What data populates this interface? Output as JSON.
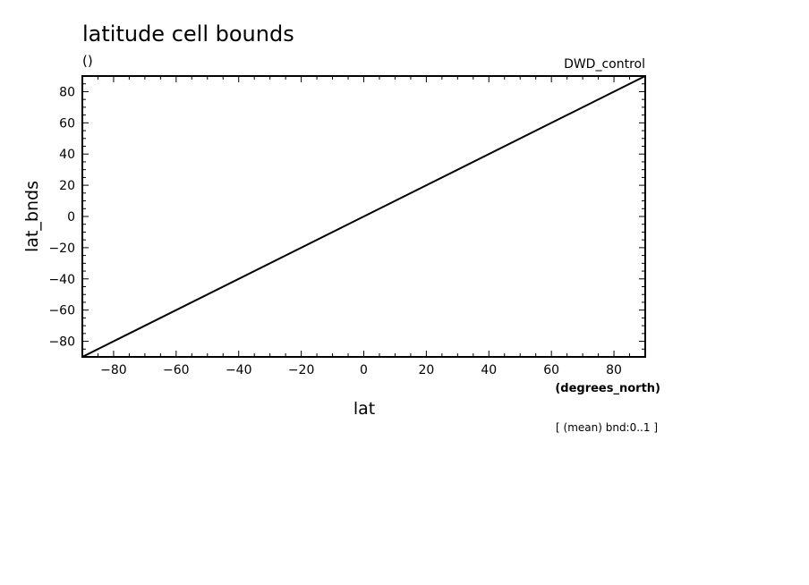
{
  "chart_data": {
    "type": "line",
    "title": "latitude cell bounds",
    "units_label": "()",
    "dataset_label": "DWD_control",
    "xlabel": "lat",
    "xunits": "(degrees_north)",
    "ylabel": "lat_bnds",
    "footnote": "[ (mean) bnd:0..1 ]",
    "xlim": [
      -90,
      90
    ],
    "ylim": [
      -90,
      90
    ],
    "xticks": [
      -80,
      -60,
      -40,
      -20,
      0,
      20,
      40,
      60,
      80
    ],
    "yticks": [
      -80,
      -60,
      -40,
      -20,
      0,
      20,
      40,
      60,
      80
    ],
    "grid": false,
    "series": [
      {
        "x": [
          -90,
          90
        ],
        "y": [
          -90,
          90
        ]
      }
    ],
    "colors": {
      "line": "#000000",
      "frame": "#000000",
      "background": "#ffffff"
    }
  }
}
